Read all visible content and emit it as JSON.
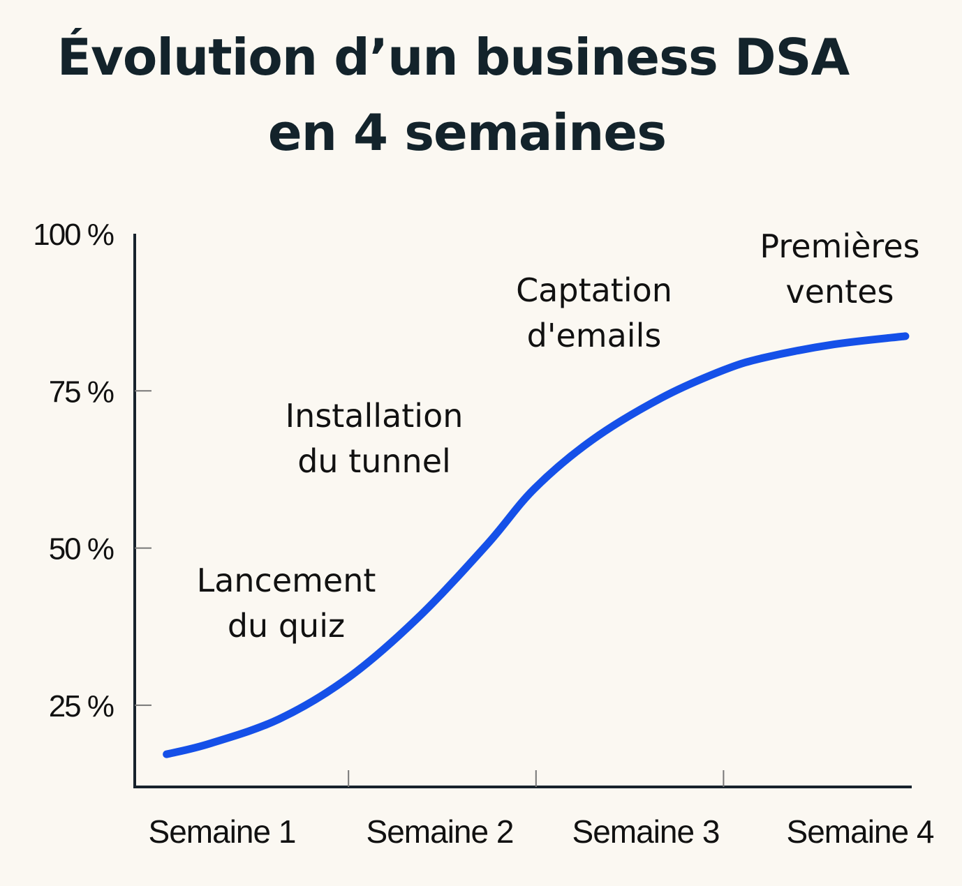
{
  "chart_data": {
    "type": "line",
    "title_line1": "Évolution d’un business DSA",
    "title_line2": "en 4 semaines",
    "xlabel": "",
    "ylabel": "",
    "categories": [
      "Semaine 1",
      "Semaine 2",
      "Semaine 3",
      "Semaine 4"
    ],
    "y_ticks": [
      {
        "value": 100,
        "label": "100 %"
      },
      {
        "value": 75,
        "label": "75 %"
      },
      {
        "value": 50,
        "label": "50 %"
      },
      {
        "value": 25,
        "label": "25 %"
      }
    ],
    "x_ticks": [
      1,
      2,
      3
    ],
    "xlim": [
      -0.14,
      4
    ],
    "ylim": [
      12,
      100
    ],
    "grid": false,
    "line_color": "#1550e8",
    "axis_color": "#17222c",
    "series": [
      {
        "x": [
          0.03,
          0.26,
          0.63,
          1.0,
          1.37,
          1.74,
          1.99,
          2.3,
          2.67,
          3.0,
          3.22,
          3.59,
          3.97
        ],
        "y": [
          17.2,
          18.9,
          22.8,
          29.4,
          38.9,
          50.6,
          59.4,
          67.2,
          73.9,
          78.3,
          80.3,
          82.4,
          83.7
        ]
      }
    ],
    "annotations": [
      {
        "line1": "Lancement",
        "line2": "du quiz"
      },
      {
        "line1": "Installation",
        "line2": "du tunnel"
      },
      {
        "line1": "Captation",
        "line2": "d'emails"
      },
      {
        "line1": "Premières",
        "line2": "ventes"
      }
    ]
  }
}
